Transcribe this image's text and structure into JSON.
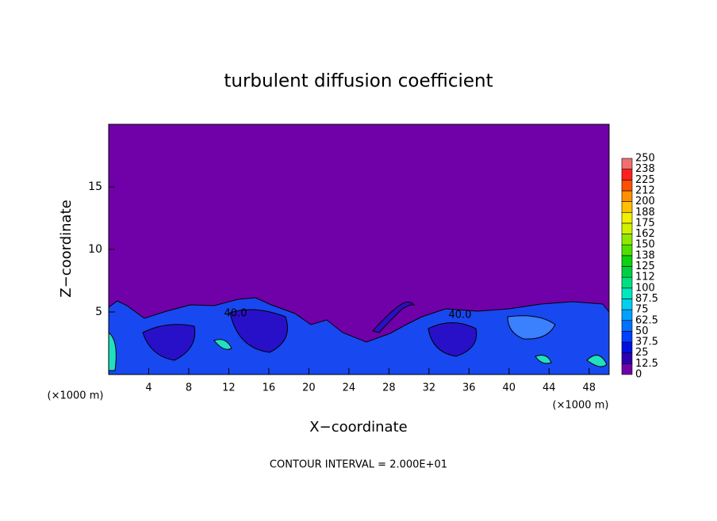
{
  "chart_data": {
    "type": "contour",
    "title": "turbulent diffusion coefficient",
    "x_label": "X−coordinate",
    "y_label": "Z−coordinate",
    "x_unit": "(×1000 m)",
    "annotation": "CONTOUR INTERVAL = 2.000E+01",
    "xlim": [
      0,
      50
    ],
    "ylim": [
      0,
      20
    ],
    "xticks": [
      4,
      8,
      12,
      16,
      20,
      24,
      28,
      32,
      36,
      40,
      44,
      48
    ],
    "yticks": [
      5,
      10,
      15
    ],
    "contour_labels": [
      {
        "value": 40,
        "label": "40.0"
      },
      {
        "value": 40,
        "label": "40.0"
      }
    ],
    "colorbar": {
      "levels": [
        0,
        12.5,
        25,
        37.5,
        50,
        62.5,
        75,
        87.5,
        100,
        {
          "value": 112.5,
          "label": "112"
        },
        125,
        {
          "value": 137.5,
          "label": "138"
        },
        150,
        {
          "value": 162.5,
          "label": "162"
        },
        175,
        {
          "value": 187.5,
          "label": "188"
        },
        200,
        {
          "value": 212.5,
          "label": "212"
        },
        225,
        {
          "value": 237.5,
          "label": "238"
        },
        250
      ],
      "colors": [
        "#7000a8",
        "#2a00b0",
        "#0010e0",
        "#0040ff",
        "#0070ff",
        "#00a0ff",
        "#00d0f0",
        "#00e8c0",
        "#00e080",
        "#00d040",
        "#10d010",
        "#50e000",
        "#90e800",
        "#d0f000",
        "#f0f000",
        "#ffc000",
        "#ff9000",
        "#ff5000",
        "#ff2020",
        "#f07070"
      ]
    }
  }
}
